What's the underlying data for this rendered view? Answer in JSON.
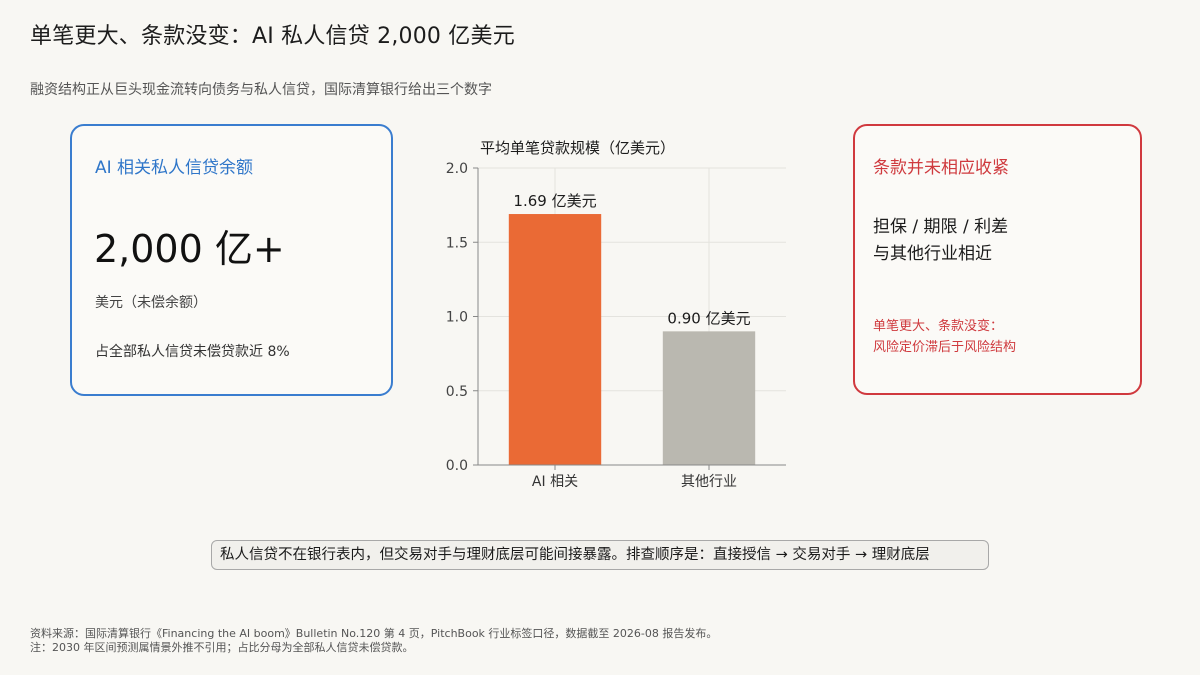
{
  "title": "单笔更大、条款没变：AI 私人信贷 2,000 亿美元",
  "subtitle": "融资结构正从巨头现金流转向债务与私人信贷，国际清算银行给出三个数字",
  "colors": {
    "accent_blue": "#3a7dcf",
    "accent_red": "#d0393e",
    "bar_ai": "#ea6a35",
    "bar_other": "#bab8b0"
  },
  "left_card": {
    "heading": "AI 相关私人信贷余额",
    "big_number": "2,000 亿+",
    "unit": "美元（未偿余额）",
    "share": "占全部私人信贷未偿贷款近 8%"
  },
  "right_card": {
    "heading": "条款并未相应收紧",
    "line1": "担保 / 期限 / 利差",
    "line2": "与其他行业相近",
    "note_line1": "单笔更大、条款没变：",
    "note_line2": "风险定价滞后于风险结构"
  },
  "chart_data": {
    "type": "bar",
    "title": "平均单笔贷款规模（亿美元）",
    "categories": [
      "AI 相关",
      "其他行业"
    ],
    "values": [
      1.69,
      0.9
    ],
    "data_labels": [
      "1.69 亿美元",
      "0.90 亿美元"
    ],
    "colors": [
      "#ea6a35",
      "#bab8b0"
    ],
    "ylim": [
      0,
      2.0
    ],
    "yticks": [
      0.0,
      0.5,
      1.0,
      1.5,
      2.0
    ],
    "ytick_labels": [
      "0.0",
      "0.5",
      "1.0",
      "1.5",
      "2.0"
    ],
    "grid": true
  },
  "callout": "私人信贷不在银行表内，但交易对手与理财底层可能间接暴露。排查顺序是：直接授信 → 交易对手 → 理财底层",
  "footer": {
    "source": "资料来源：国际清算银行《Financing the AI boom》Bulletin No.120 第 4 页，PitchBook 行业标签口径，数据截至 2026-08 报告发布。",
    "note": "注：2030 年区间预测属情景外推不引用；占比分母为全部私人信贷未偿贷款。"
  }
}
